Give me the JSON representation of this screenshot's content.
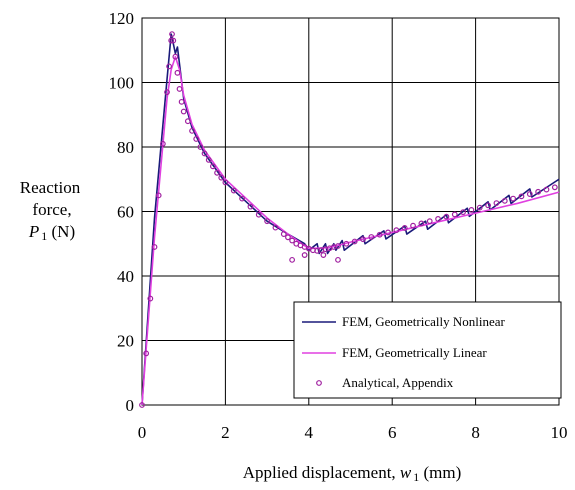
{
  "chart_data": {
    "type": "line",
    "xlabel": "Applied displacement, ",
    "xlabel_var": "w",
    "xlabel_sub": "1",
    "xlabel_unit": " (mm)",
    "ylabel_line1": "Reaction",
    "ylabel_line2": "force,",
    "ylabel_var": "P",
    "ylabel_sub": "1",
    "ylabel_unit": " (N)",
    "xlim": [
      0,
      10
    ],
    "ylim": [
      0,
      120
    ],
    "x_ticks": [
      0,
      2,
      4,
      6,
      8,
      10
    ],
    "y_ticks": [
      0,
      20,
      40,
      60,
      80,
      100,
      120
    ],
    "x_tick_labels": [
      "0",
      "2",
      "4",
      "6",
      "8",
      "10"
    ],
    "y_tick_labels": [
      "0",
      "20",
      "40",
      "60",
      "80",
      "100",
      "120"
    ],
    "grid": true,
    "legend_position": "bottom-right",
    "series": [
      {
        "name": "FEM, Geometrically Nonlinear",
        "style": "line",
        "color": "#1a1a7a",
        "x": [
          0,
          0.3,
          0.6,
          0.7,
          0.72,
          0.8,
          0.85,
          1.0,
          1.2,
          1.5,
          2.0,
          2.5,
          3.0,
          3.5,
          3.9,
          4.0,
          4.2,
          4.25,
          4.4,
          4.45,
          4.6,
          4.65,
          4.8,
          4.85,
          5.3,
          5.35,
          5.8,
          5.85,
          6.3,
          6.35,
          6.8,
          6.85,
          7.3,
          7.35,
          7.8,
          7.85,
          8.3,
          8.35,
          8.8,
          8.85,
          9.3,
          9.35,
          10.0
        ],
        "y": [
          0,
          58,
          101,
          115,
          114,
          109,
          111,
          95,
          86,
          78,
          69,
          63,
          57,
          53,
          50,
          48,
          50,
          47,
          50,
          47,
          50,
          48,
          51,
          48,
          52.5,
          50,
          54,
          51.5,
          55.5,
          53,
          57,
          54.5,
          59,
          56.5,
          61,
          58.5,
          63,
          60.5,
          65,
          62.5,
          67,
          64.5,
          70
        ]
      },
      {
        "name": "FEM, Geometrically Linear",
        "style": "line",
        "color": "#e040e0",
        "x": [
          0,
          0.3,
          0.6,
          0.7,
          0.8,
          0.9,
          1.0,
          1.2,
          1.5,
          2.0,
          2.5,
          3.0,
          3.5,
          4.0,
          4.5,
          5.0,
          6.0,
          7.0,
          8.0,
          9.0,
          10.0
        ],
        "y": [
          0,
          52,
          95,
          104,
          108,
          104,
          96,
          87,
          79,
          70,
          64,
          58,
          53,
          48.5,
          48.8,
          50.5,
          53.5,
          56.5,
          59.5,
          62.5,
          66
        ]
      },
      {
        "name": "Analytical, Appendix",
        "style": "markers",
        "color": "#a020a0",
        "x": [
          0,
          0.1,
          0.2,
          0.3,
          0.4,
          0.5,
          0.6,
          0.65,
          0.7,
          0.72,
          0.75,
          0.8,
          0.85,
          0.9,
          0.95,
          1.0,
          1.1,
          1.2,
          1.3,
          1.4,
          1.5,
          1.6,
          1.7,
          1.8,
          1.9,
          2.0,
          2.2,
          2.4,
          2.6,
          2.8,
          3.0,
          3.2,
          3.4,
          3.5,
          3.6,
          3.7,
          3.8,
          3.9,
          4.0,
          4.1,
          4.2,
          4.3,
          4.4,
          4.5,
          4.6,
          4.7,
          4.9,
          5.1,
          5.3,
          5.5,
          5.7,
          5.9,
          6.1,
          6.3,
          6.5,
          6.7,
          6.9,
          7.1,
          7.3,
          7.5,
          7.7,
          7.9,
          8.1,
          8.3,
          8.5,
          8.7,
          8.9,
          9.1,
          9.3,
          9.5,
          9.7,
          9.9,
          3.6,
          3.9,
          4.35,
          4.7
        ],
        "y": [
          0,
          16,
          33,
          49,
          65,
          81,
          97,
          105,
          113,
          115,
          113,
          108,
          103,
          98,
          94,
          91,
          88,
          85,
          82.5,
          80,
          78,
          76,
          74,
          72,
          70.5,
          69,
          66.5,
          64,
          61.5,
          59,
          57,
          55,
          53,
          52,
          51,
          50,
          49.5,
          49,
          48.5,
          48,
          47.8,
          48,
          48.3,
          48.6,
          49,
          49.3,
          50,
          50.7,
          51.4,
          52.1,
          52.8,
          53.5,
          54.2,
          54.9,
          55.6,
          56.3,
          57,
          57.7,
          58.4,
          59.1,
          59.8,
          60.5,
          61.2,
          61.9,
          62.6,
          63.3,
          64,
          64.7,
          65.4,
          66.1,
          66.8,
          67.5,
          45,
          46.5,
          46.5,
          45
        ]
      }
    ]
  }
}
